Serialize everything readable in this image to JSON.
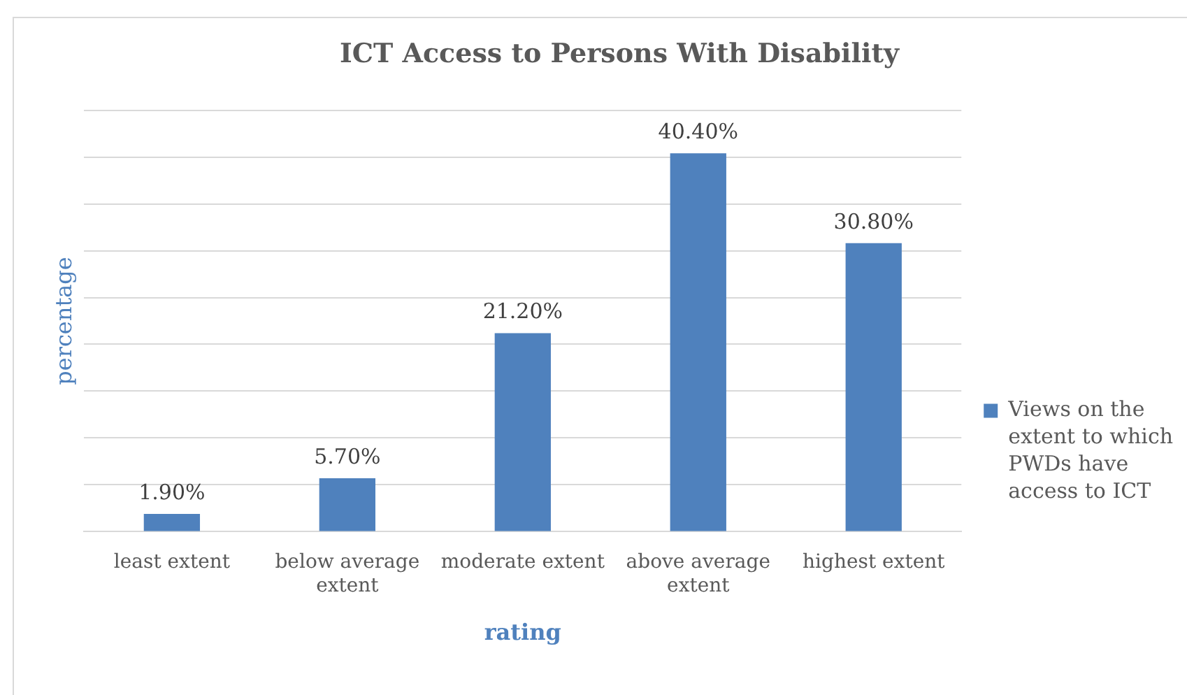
{
  "chart_data": {
    "type": "bar",
    "title": "ICT Access to Persons With Disability",
    "xlabel": "rating",
    "ylabel": "percentage",
    "categories": [
      "least extent",
      "below average extent",
      "moderate extent",
      "above average extent",
      "highest extent"
    ],
    "series": [
      {
        "name": "Views on the extent to which PWDs have access to ICT",
        "color": "#4f81bd",
        "values": [
          1.9,
          5.7,
          21.2,
          40.4,
          30.8
        ],
        "value_labels": [
          "1.90%",
          "5.70%",
          "21.20%",
          "40.40%",
          "30.80%"
        ]
      }
    ],
    "ylim": [
      0,
      45
    ],
    "yticks": [
      0,
      5,
      10,
      15,
      20,
      25,
      30,
      35,
      40,
      45
    ],
    "tick_labels": "x",
    "grid": "y",
    "legend": "right"
  }
}
